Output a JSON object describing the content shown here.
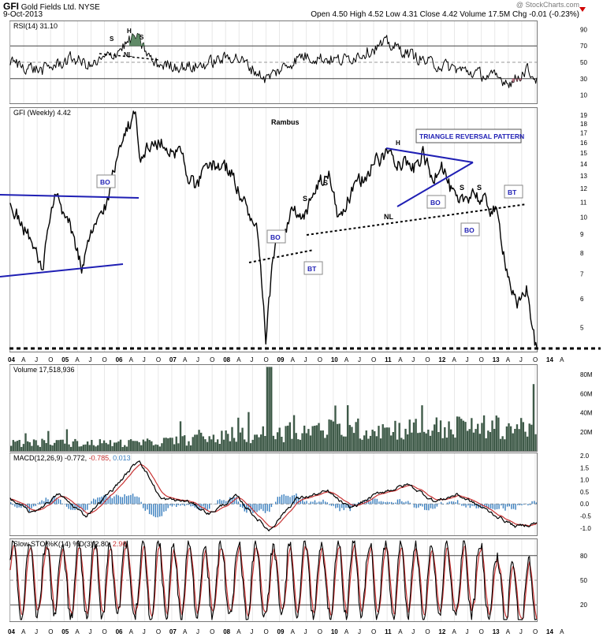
{
  "header": {
    "symbol": "GFI",
    "company": "Gold Fields Ltd.",
    "exchange": "NYSE",
    "date": "9-Oct-2013",
    "quote": "Open 4.50  High 4.52  Low 4.31  Close 4.42  Volume 17.5M  Chg -0.01 (-0.23%)",
    "watermark": "@ StockCharts.com"
  },
  "colors": {
    "price": "#000000",
    "rsi_fill": "#4f7d57",
    "volume": "#3e5a48",
    "macd": "#000000",
    "macd_signal": "#c83232",
    "macd_hist": "#3a7fbf",
    "sto_k": "#000000",
    "sto_d": "#c83232",
    "annotation": "#1f1fb4"
  },
  "x_axis": {
    "labels": [
      "04",
      "A",
      "J",
      "O",
      "05",
      "A",
      "J",
      "O",
      "06",
      "A",
      "J",
      "O",
      "07",
      "A",
      "J",
      "O",
      "08",
      "A",
      "J",
      "O",
      "09",
      "A",
      "J",
      "O",
      "10",
      "A",
      "J",
      "O",
      "11",
      "A",
      "J",
      "O",
      "12",
      "A",
      "J",
      "O",
      "13",
      "A",
      "J",
      "O",
      "14",
      "A"
    ]
  },
  "panels": {
    "rsi": {
      "legend": "RSI(14) 31.10",
      "ticks": [
        "90",
        "70",
        "50",
        "30",
        "10"
      ],
      "annotations": [
        "S",
        "H",
        "S",
        "NL"
      ]
    },
    "price": {
      "legend": "GFI (Weekly) 4.42",
      "author": "Rambus",
      "ticks": [
        "19",
        "18",
        "17",
        "16",
        "15",
        "14",
        "13",
        "12",
        "11",
        "10",
        "9",
        "8",
        "7",
        "6",
        "5"
      ],
      "labels": {
        "triangle": "TRIANGLE REVERSAL PATTERN",
        "h": "H",
        "s1": "S",
        "s2": "S",
        "s3": "S",
        "s4": "S",
        "nl": "NL",
        "bo1": "BO",
        "bo2": "BO",
        "bo3": "BO",
        "bo4": "BO",
        "bt1": "BT",
        "bt2": "BT"
      }
    },
    "volume": {
      "legend": "Volume 17,518,936",
      "ticks": [
        "80M",
        "60M",
        "40M",
        "20M"
      ]
    },
    "macd": {
      "legend_name": "MACD(12,26,9)",
      "legend_macd": "-0.772,",
      "legend_signal": "-0.785,",
      "legend_hist": "0.013",
      "ticks": [
        "2.0",
        "1.5",
        "1.0",
        "0.5",
        "0.0",
        "-0.5",
        "-1.0"
      ]
    },
    "sto": {
      "legend_name": "Slow STO %K(14) %D(3)",
      "legend_k": "2.80,",
      "legend_d": "2.90",
      "ticks": [
        "80",
        "50",
        "20"
      ]
    }
  },
  "chart_data": [
    {
      "type": "line",
      "title": "GFI (Weekly) 4.42",
      "y_scale": "log",
      "ylim": [
        4.3,
        19.5
      ],
      "x_range": [
        "2004-01",
        "2013-10"
      ],
      "anchors": [
        {
          "x": "2004-01",
          "y": 11.0
        },
        {
          "x": "2004-05",
          "y": 9.0
        },
        {
          "x": "2004-08",
          "y": 7.0
        },
        {
          "x": "2004-11",
          "y": 11.2
        },
        {
          "x": "2005-03",
          "y": 9.0
        },
        {
          "x": "2005-05",
          "y": 7.2
        },
        {
          "x": "2005-08",
          "y": 9.5
        },
        {
          "x": "2005-11",
          "y": 11.3
        },
        {
          "x": "2006-02",
          "y": 17.0
        },
        {
          "x": "2006-05",
          "y": 19.0
        },
        {
          "x": "2006-06",
          "y": 15.0
        },
        {
          "x": "2006-10",
          "y": 16.0
        },
        {
          "x": "2007-03",
          "y": 15.0
        },
        {
          "x": "2007-06",
          "y": 12.0
        },
        {
          "x": "2007-10",
          "y": 14.0
        },
        {
          "x": "2008-02",
          "y": 13.5
        },
        {
          "x": "2008-05",
          "y": 11.0
        },
        {
          "x": "2008-08",
          "y": 9.0
        },
        {
          "x": "2008-10",
          "y": 4.3
        },
        {
          "x": "2008-12",
          "y": 8.5
        },
        {
          "x": "2009-02",
          "y": 9.0
        },
        {
          "x": "2009-04",
          "y": 10.5
        },
        {
          "x": "2009-06",
          "y": 9.5
        },
        {
          "x": "2009-09",
          "y": 12.0
        },
        {
          "x": "2009-12",
          "y": 13.0
        },
        {
          "x": "2010-02",
          "y": 10.0
        },
        {
          "x": "2010-04",
          "y": 11.0
        },
        {
          "x": "2010-07",
          "y": 12.5
        },
        {
          "x": "2010-10",
          "y": 14.0
        },
        {
          "x": "2011-01",
          "y": 15.0
        },
        {
          "x": "2011-04",
          "y": 14.5
        },
        {
          "x": "2011-07",
          "y": 13.5
        },
        {
          "x": "2011-09",
          "y": 15.0
        },
        {
          "x": "2011-11",
          "y": 12.5
        },
        {
          "x": "2012-01",
          "y": 14.5
        },
        {
          "x": "2012-03",
          "y": 12.0
        },
        {
          "x": "2012-05",
          "y": 10.5
        },
        {
          "x": "2012-08",
          "y": 12.0
        },
        {
          "x": "2012-10",
          "y": 11.0
        },
        {
          "x": "2013-01",
          "y": 10.5
        },
        {
          "x": "2013-04",
          "y": 7.0
        },
        {
          "x": "2013-06",
          "y": 5.5
        },
        {
          "x": "2013-08",
          "y": 6.5
        },
        {
          "x": "2013-10",
          "y": 4.42
        }
      ]
    },
    {
      "type": "line",
      "title": "RSI(14) 31.10",
      "ylim": [
        0,
        100
      ],
      "anchors": [
        {
          "x": "2004-01",
          "y": 50
        },
        {
          "x": "2004-08",
          "y": 40
        },
        {
          "x": "2005-03",
          "y": 55
        },
        {
          "x": "2005-07",
          "y": 45
        },
        {
          "x": "2005-12",
          "y": 60
        },
        {
          "x": "2006-05",
          "y": 82
        },
        {
          "x": "2006-09",
          "y": 48
        },
        {
          "x": "2007-06",
          "y": 44
        },
        {
          "x": "2008-03",
          "y": 58
        },
        {
          "x": "2008-10",
          "y": 30
        },
        {
          "x": "2009-06",
          "y": 58
        },
        {
          "x": "2010-03",
          "y": 52
        },
        {
          "x": "2011-01",
          "y": 73
        },
        {
          "x": "2011-10",
          "y": 50
        },
        {
          "x": "2012-06",
          "y": 40
        },
        {
          "x": "2013-05",
          "y": 26
        },
        {
          "x": "2013-08",
          "y": 42
        },
        {
          "x": "2013-10",
          "y": 31.1
        }
      ]
    },
    {
      "type": "bar",
      "title": "Volume 17,518,936",
      "ylim": [
        0,
        90000000
      ],
      "values_note_units": "shares",
      "last_value": 17518936,
      "peak_value": 88000000
    },
    {
      "type": "line",
      "title": "MACD(12,26,9)",
      "ylim": [
        -1.3,
        2.1
      ],
      "series": [
        {
          "name": "MACD(12,26,9)",
          "last": -0.772
        },
        {
          "name": "Signal",
          "last": -0.785
        },
        {
          "name": "Histogram",
          "last": 0.013
        }
      ]
    },
    {
      "type": "line",
      "title": "Slow STO %K(14) %D(3)",
      "ylim": [
        0,
        100
      ],
      "series": [
        {
          "name": "%K(14)",
          "last": 2.8
        },
        {
          "name": "%D(3)",
          "last": 2.9
        }
      ]
    }
  ]
}
